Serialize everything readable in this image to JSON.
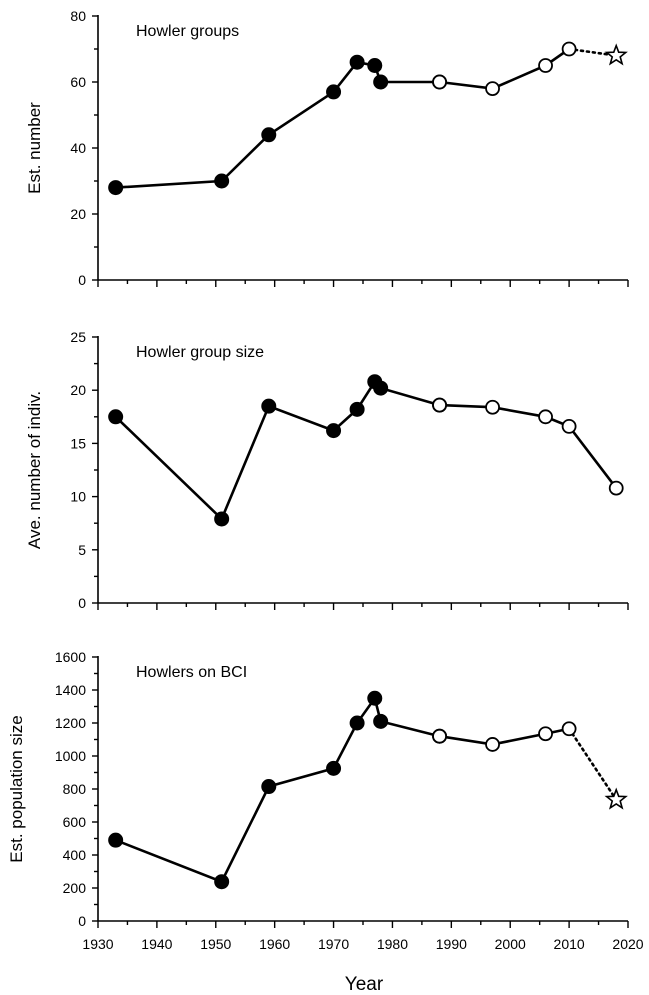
{
  "chart_data": [
    {
      "type": "line",
      "title": "Howlers groups",
      "title_text": "Howler groups",
      "ylabel": "Est. number",
      "xlim": [
        1930,
        2020
      ],
      "ylim": [
        0,
        80
      ],
      "yticks": [
        0,
        20,
        40,
        60,
        80
      ],
      "grid": false,
      "series": [
        {
          "marker": "filled-circle",
          "line": "solid",
          "x": [
            1933,
            1951,
            1959,
            1970,
            1974,
            1977,
            1978,
            1988
          ],
          "y": [
            28,
            30,
            44,
            57,
            66,
            65,
            60,
            60
          ]
        },
        {
          "marker": "open-circle",
          "line": "solid",
          "x": [
            1988,
            1997,
            2006,
            2010
          ],
          "y": [
            60,
            58,
            65,
            70
          ]
        },
        {
          "marker": "star",
          "line": "dotted",
          "x": [
            2010,
            2018
          ],
          "y": [
            70,
            68
          ]
        }
      ]
    },
    {
      "type": "line",
      "title_text": "Howler group size",
      "ylabel": "Ave. number of indiv.",
      "xlim": [
        1930,
        2020
      ],
      "ylim": [
        0,
        25
      ],
      "yticks": [
        0,
        5,
        10,
        15,
        20,
        25
      ],
      "grid": false,
      "series": [
        {
          "marker": "filled-circle",
          "line": "solid",
          "x": [
            1933,
            1951,
            1959,
            1970,
            1974,
            1977,
            1978,
            1988
          ],
          "y": [
            17.5,
            7.9,
            18.5,
            16.2,
            18.2,
            20.8,
            20.2,
            18.6
          ]
        },
        {
          "marker": "open-circle",
          "line": "solid",
          "x": [
            1988,
            1997,
            2006,
            2010,
            2018
          ],
          "y": [
            18.6,
            18.4,
            17.5,
            16.6,
            10.8
          ]
        }
      ]
    },
    {
      "type": "line",
      "title_text": "Howlers on BCI",
      "ylabel": "Est. population size",
      "xlabel": "Year",
      "xlim": [
        1930,
        2020
      ],
      "ylim": [
        0,
        1600
      ],
      "yticks": [
        0,
        200,
        400,
        600,
        800,
        1000,
        1200,
        1400,
        1600
      ],
      "xticks": [
        1930,
        1940,
        1950,
        1960,
        1970,
        1980,
        1990,
        2000,
        2010,
        2020
      ],
      "grid": false,
      "series": [
        {
          "marker": "filled-circle",
          "line": "solid",
          "x": [
            1933,
            1951,
            1959,
            1970,
            1974,
            1977,
            1978,
            1988
          ],
          "y": [
            490,
            238,
            815,
            925,
            1200,
            1350,
            1210,
            1120
          ]
        },
        {
          "marker": "open-circle",
          "line": "solid",
          "x": [
            1988,
            1997,
            2006,
            2010
          ],
          "y": [
            1120,
            1070,
            1135,
            1165
          ]
        },
        {
          "marker": "star",
          "line": "dotted",
          "x": [
            2010,
            2018
          ],
          "y": [
            1165,
            735
          ]
        }
      ]
    }
  ]
}
